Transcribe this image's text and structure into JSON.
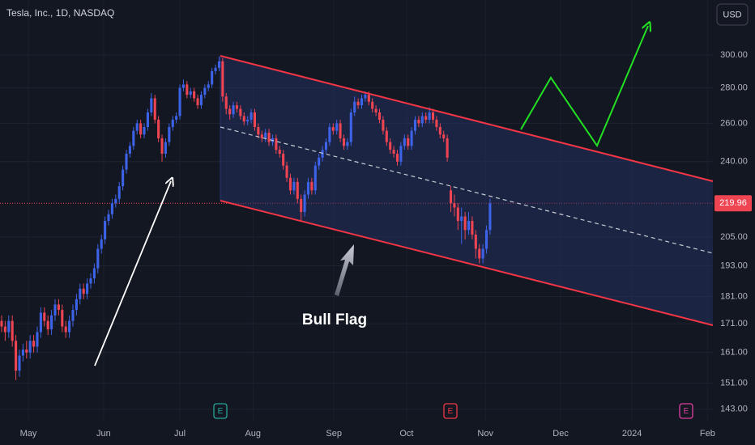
{
  "chart_data": {
    "type": "candlestick",
    "title": "Tesla, Inc., 1D, NASDAQ",
    "currency": "USD",
    "annotation": "Bull Flag",
    "earnings_labels": [
      "E",
      "E",
      "E"
    ],
    "log_scale": true,
    "grid": true,
    "up_color": "#3d63e8",
    "down_color": "#ef4452",
    "last_price": 219.96,
    "ylim": [
      139.6,
      336.5
    ],
    "yticks": [
      {
        "value": 143,
        "label": "143.00"
      },
      {
        "value": 151,
        "label": "151.00"
      },
      {
        "value": 161,
        "label": "161.00"
      },
      {
        "value": 171,
        "label": "171.00"
      },
      {
        "value": 181,
        "label": "181.00"
      },
      {
        "value": 193,
        "label": "193.00"
      },
      {
        "value": 205,
        "label": "205.00"
      },
      {
        "value": 240,
        "label": "240.00"
      },
      {
        "value": 260,
        "label": "260.00"
      },
      {
        "value": 280,
        "label": "280.00"
      },
      {
        "value": 300,
        "label": "300.00"
      }
    ],
    "xlim": [
      -0.45,
      199.5
    ],
    "xticks": [
      {
        "value": 7.5,
        "label": "May"
      },
      {
        "value": 28.6,
        "label": "Jun"
      },
      {
        "value": 50,
        "label": "Jul"
      },
      {
        "value": 70.5,
        "label": "Aug"
      },
      {
        "value": 93.2,
        "label": "Sep"
      },
      {
        "value": 113.6,
        "label": "Oct"
      },
      {
        "value": 135.7,
        "label": "Nov"
      },
      {
        "value": 156.8,
        "label": "Dec"
      },
      {
        "value": 176.8,
        "label": "2024"
      },
      {
        "value": 198,
        "label": "Feb"
      }
    ],
    "x": [
      0,
      1,
      2,
      3,
      4,
      5,
      6,
      7,
      8,
      9,
      10,
      11,
      12,
      13,
      14,
      15,
      16,
      17,
      18,
      19,
      20,
      21,
      22,
      23,
      24,
      25,
      26,
      27,
      28,
      29,
      30,
      31,
      32,
      33,
      34,
      35,
      36,
      37,
      38,
      39,
      40,
      41,
      42,
      43,
      44,
      45,
      46,
      47,
      48,
      49,
      50,
      51,
      52,
      53,
      54,
      55,
      56,
      57,
      58,
      59,
      60,
      61,
      62,
      63,
      64,
      65,
      66,
      67,
      68,
      69,
      70,
      71,
      72,
      73,
      74,
      75,
      76,
      77,
      78,
      79,
      80,
      81,
      82,
      83,
      84,
      85,
      86,
      87,
      88,
      89,
      90,
      91,
      92,
      93,
      94,
      95,
      96,
      97,
      98,
      99,
      100,
      101,
      102,
      103,
      104,
      105,
      106,
      107,
      108,
      109,
      110,
      111,
      112,
      113,
      114,
      115,
      116,
      117,
      118,
      119,
      120,
      121,
      122,
      123,
      124,
      125,
      126,
      127,
      128,
      129,
      130,
      131,
      132,
      133,
      134,
      135,
      136,
      137
    ],
    "open": [
      172,
      170,
      168,
      172,
      165,
      155,
      160,
      162,
      161,
      165,
      163,
      168,
      175,
      172,
      169,
      174,
      178,
      176,
      170,
      168,
      172,
      176,
      180,
      184,
      182,
      186,
      188,
      192,
      200,
      204,
      212,
      215,
      220,
      222,
      228,
      236,
      244,
      248,
      256,
      260,
      254,
      258,
      266,
      274,
      262,
      252,
      244,
      250,
      258,
      262,
      264,
      280,
      282,
      276,
      278,
      274,
      270,
      276,
      280,
      282,
      290,
      292,
      296,
      275,
      268,
      265,
      270,
      268,
      264,
      261,
      262,
      266,
      258,
      254,
      252,
      255,
      250,
      252,
      246,
      244,
      238,
      232,
      226,
      230,
      222,
      216,
      224,
      230,
      226,
      238,
      242,
      246,
      250,
      258,
      256,
      260,
      252,
      248,
      250,
      266,
      272,
      270,
      274,
      276,
      272,
      268,
      266,
      262,
      256,
      250,
      246,
      244,
      240,
      248,
      252,
      248,
      256,
      262,
      260,
      264,
      262,
      266,
      262,
      258,
      254,
      252,
      226,
      220,
      218,
      212,
      214,
      208,
      212,
      206,
      200,
      196,
      200,
      208
    ],
    "high": [
      174,
      172,
      174,
      174,
      167,
      162,
      164,
      165,
      167,
      167,
      170,
      177,
      177,
      174,
      176,
      180,
      180,
      178,
      172,
      174,
      178,
      182,
      186,
      186,
      188,
      190,
      194,
      202,
      206,
      214,
      217,
      222,
      224,
      230,
      238,
      246,
      250,
      258,
      262,
      262,
      260,
      268,
      277,
      276,
      264,
      254,
      252,
      260,
      264,
      266,
      282,
      285,
      284,
      280,
      280,
      276,
      278,
      282,
      284,
      292,
      294,
      299,
      298,
      277,
      270,
      272,
      272,
      270,
      266,
      264,
      268,
      268,
      260,
      256,
      257,
      257,
      254,
      254,
      248,
      246,
      240,
      234,
      232,
      232,
      224,
      226,
      232,
      232,
      240,
      244,
      248,
      252,
      260,
      260,
      262,
      262,
      254,
      252,
      268,
      275,
      274,
      276,
      278,
      278,
      274,
      270,
      268,
      264,
      258,
      252,
      248,
      246,
      250,
      254,
      254,
      258,
      264,
      264,
      266,
      266,
      269,
      268,
      264,
      260,
      256,
      254,
      228,
      224,
      220,
      218,
      216,
      216,
      214,
      208,
      202,
      202,
      210,
      222
    ],
    "low": [
      168,
      165,
      166,
      163,
      152,
      153,
      158,
      159,
      159,
      161,
      161,
      166,
      170,
      167,
      167,
      172,
      174,
      168,
      166,
      166,
      170,
      174,
      178,
      180,
      180,
      184,
      186,
      190,
      198,
      202,
      210,
      213,
      218,
      220,
      226,
      234,
      242,
      246,
      254,
      252,
      252,
      256,
      264,
      260,
      250,
      240,
      242,
      248,
      256,
      260,
      262,
      278,
      274,
      274,
      272,
      268,
      268,
      274,
      278,
      280,
      288,
      290,
      272,
      265,
      262,
      263,
      266,
      262,
      259,
      259,
      260,
      256,
      252,
      250,
      250,
      248,
      248,
      244,
      242,
      236,
      230,
      224,
      224,
      220,
      212,
      214,
      222,
      224,
      224,
      236,
      240,
      244,
      248,
      254,
      254,
      250,
      246,
      246,
      248,
      264,
      268,
      268,
      272,
      270,
      266,
      264,
      260,
      254,
      248,
      244,
      242,
      238,
      238,
      246,
      246,
      246,
      254,
      258,
      258,
      260,
      260,
      260,
      256,
      252,
      250,
      240,
      216,
      214,
      208,
      202,
      204,
      206,
      204,
      196,
      194,
      194,
      198,
      206
    ],
    "close": [
      170,
      168,
      172,
      165,
      155,
      160,
      162,
      161,
      165,
      163,
      168,
      175,
      172,
      169,
      174,
      178,
      176,
      170,
      168,
      172,
      176,
      180,
      184,
      182,
      186,
      188,
      192,
      200,
      204,
      212,
      215,
      220,
      222,
      228,
      236,
      244,
      248,
      256,
      260,
      254,
      258,
      266,
      274,
      262,
      252,
      244,
      250,
      258,
      262,
      264,
      280,
      282,
      276,
      278,
      274,
      270,
      276,
      280,
      282,
      290,
      292,
      296,
      275,
      268,
      265,
      270,
      268,
      264,
      261,
      262,
      266,
      258,
      254,
      252,
      255,
      250,
      252,
      246,
      244,
      238,
      232,
      226,
      230,
      222,
      216,
      224,
      230,
      226,
      238,
      242,
      246,
      250,
      258,
      256,
      260,
      252,
      248,
      250,
      266,
      272,
      270,
      274,
      276,
      272,
      268,
      266,
      262,
      256,
      250,
      246,
      244,
      240,
      248,
      252,
      248,
      256,
      262,
      260,
      264,
      262,
      266,
      262,
      258,
      254,
      252,
      242,
      220,
      218,
      212,
      214,
      208,
      212,
      206,
      200,
      196,
      200,
      208,
      219.96
    ]
  }
}
